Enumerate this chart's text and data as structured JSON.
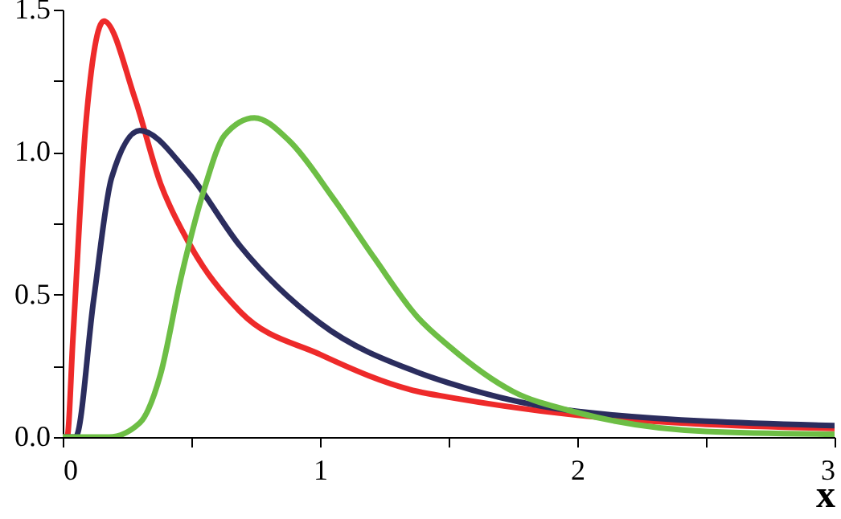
{
  "chart_data": {
    "type": "line",
    "xlabel": "x",
    "xlim": [
      0,
      3
    ],
    "ylim": [
      0,
      1.5
    ],
    "xticks": [
      0,
      {
        "value": 0.5,
        "label": null
      },
      1,
      {
        "value": 1.5,
        "label": null
      },
      2,
      {
        "value": 2.5,
        "label": null
      },
      3
    ],
    "yticks": [
      {
        "value": 0,
        "label": "0.0"
      },
      {
        "value": 0.25,
        "label": null
      },
      0.5,
      {
        "value": 0.75,
        "label": null
      },
      {
        "value": 1,
        "label": "1.0"
      },
      {
        "value": 1.25,
        "label": null
      },
      1.5
    ],
    "grid": false,
    "marker": "none",
    "line_style": "solid",
    "series": [
      {
        "color": "#ee2a2a",
        "x": [
          0,
          0.017,
          0.04,
          0.09,
          0.16,
          0.28,
          0.38,
          0.485,
          0.69,
          1.0,
          1.38,
          1.5,
          2.0,
          3.0
        ],
        "values": [
          0,
          0,
          0.35,
          1.1,
          1.46,
          1.19,
          0.89,
          0.69,
          0.44,
          0.29,
          0.16,
          0.14,
          0.077,
          0.03
        ]
      },
      {
        "color": "#2b2d5e",
        "x": [
          0,
          0.05,
          0.12,
          0.19,
          0.3,
          0.485,
          0.69,
          1.0,
          1.38,
          1.5,
          2.0,
          3.0
        ],
        "values": [
          0,
          0,
          0.48,
          0.91,
          1.076,
          0.93,
          0.67,
          0.4,
          0.227,
          0.19,
          0.09,
          0.04
        ]
      },
      {
        "color": "#6dbe45",
        "x": [
          0,
          0.18,
          0.3,
          0.38,
          0.46,
          0.55,
          0.63,
          0.745,
          0.88,
          1.05,
          1.21,
          1.38,
          1.5,
          1.75,
          2.0,
          2.5,
          3.0
        ],
        "values": [
          0,
          0,
          0.05,
          0.22,
          0.56,
          0.87,
          1.06,
          1.12,
          1.04,
          0.84,
          0.63,
          0.42,
          0.32,
          0.16,
          0.086,
          0.02,
          0.01
        ]
      }
    ]
  }
}
